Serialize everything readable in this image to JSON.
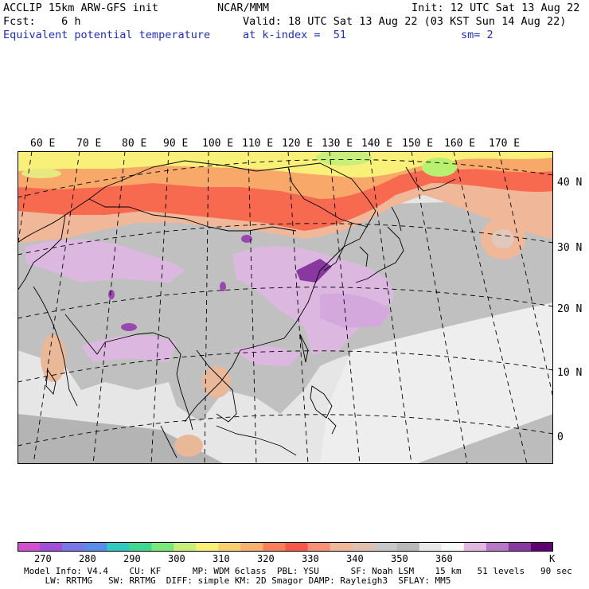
{
  "header": {
    "model": "ACCLIP 15km ARW-GFS init",
    "org": "NCAR/MMM",
    "init": "Init: 12 UTC Sat 13 Aug 22",
    "fcst": "Fcst:    6 h",
    "valid": "Valid: 18 UTC Sat 13 Aug 22 (03 KST Sun 14 Aug 22)",
    "field": "Equivalent potential temperature",
    "level": "at k-index =  51",
    "smooth": "sm= 2"
  },
  "map": {
    "lon_labels": [
      "60 E",
      "70 E",
      "80 E",
      "90 E",
      "100 E",
      "110 E",
      "120 E",
      "130 E",
      "140 E",
      "150 E",
      "160 E",
      "170 E"
    ],
    "lat_labels": [
      "40 N",
      "30 N",
      "20 N",
      "10 N",
      "0"
    ]
  },
  "colorbar": {
    "unit": "K",
    "labels": [
      "270",
      "280",
      "290",
      "300",
      "310",
      "320",
      "330",
      "340",
      "350",
      "360"
    ],
    "colors": [
      "#d050d0",
      "#a050d8",
      "#7a78e8",
      "#5a8ce8",
      "#30c8c0",
      "#40d890",
      "#78e878",
      "#c8f078",
      "#f8f078",
      "#f8d070",
      "#f8b070",
      "#f88058",
      "#f85848",
      "#f89078",
      "#f0b898",
      "#e0c0b0",
      "#c8c8c8",
      "#b8b8b8",
      "#e8e8e8",
      "#f8f8f8",
      "#e0b8e0",
      "#b878c8",
      "#8838a0",
      "#600070"
    ]
  },
  "footer": {
    "line1": "Model Info: V4.4    CU: KF      MP: WDM 6class  PBL: YSU      SF: Noah LSM    15 km   51 levels   90 sec",
    "line2": "    LW: RRTMG   SW: RRTMG  DIFF: simple KM: 2D Smagor DAMP: Rayleigh3  SFLAY: MM5"
  }
}
